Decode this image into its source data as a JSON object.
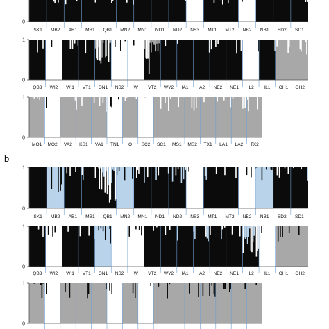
{
  "colors": {
    "black": "#0b0b0b",
    "blue": "#b9d3ea",
    "grey": "#a8a8a8",
    "white": "#ffffff",
    "axis": "#555555",
    "divider": "#6e9fd0"
  },
  "chart_data": [
    {
      "panel": "a",
      "type": "bar",
      "stacked": true,
      "ylim": [
        0,
        1
      ],
      "yticks": [
        "0",
        "1"
      ],
      "rows": [
        {
          "groups": [
            {
              "label": "SK1",
              "pattern": "black"
            },
            {
              "label": "MB2",
              "pattern": "black"
            },
            {
              "label": "AB1",
              "pattern": "black"
            },
            {
              "label": "MB1",
              "pattern": "black"
            },
            {
              "label": "QB1",
              "pattern": "black"
            },
            {
              "label": "MN2",
              "pattern": "black"
            },
            {
              "label": "MN1",
              "pattern": "black"
            },
            {
              "label": "ND1",
              "pattern": "black"
            },
            {
              "label": "ND2",
              "pattern": "black"
            },
            {
              "label": "NS3",
              "pattern": "white"
            },
            {
              "label": "MT1",
              "pattern": "black"
            },
            {
              "label": "MT2",
              "pattern": "black"
            },
            {
              "label": "NB2",
              "pattern": "white"
            },
            {
              "label": "NB1",
              "pattern": "black"
            },
            {
              "label": "SD2",
              "pattern": "black"
            },
            {
              "label": "SD1",
              "pattern": "black"
            }
          ]
        },
        {
          "groups": [
            {
              "label": "QB3",
              "pattern": "black"
            },
            {
              "label": "WI2",
              "pattern": "white"
            },
            {
              "label": "WI1",
              "pattern": "black"
            },
            {
              "label": "VT1",
              "pattern": "black"
            },
            {
              "label": "ON1",
              "pattern": "mixed"
            },
            {
              "label": "NS2",
              "pattern": "white"
            },
            {
              "label": "W",
              "pattern": "white"
            },
            {
              "label": "VT2",
              "pattern": "mixed"
            },
            {
              "label": "WY2",
              "pattern": "black"
            },
            {
              "label": "IA1",
              "pattern": "black"
            },
            {
              "label": "IA2",
              "pattern": "black"
            },
            {
              "label": "NE2",
              "pattern": "black"
            },
            {
              "label": "NE1",
              "pattern": "black"
            },
            {
              "label": "IL2",
              "pattern": "white"
            },
            {
              "label": "IL1",
              "pattern": "black"
            },
            {
              "label": "OH1",
              "pattern": "grey"
            },
            {
              "label": "OH2",
              "pattern": "grey"
            }
          ]
        },
        {
          "groups": [
            {
              "label": "MO1",
              "pattern": "grey"
            },
            {
              "label": "MO2",
              "pattern": "white"
            },
            {
              "label": "VA2",
              "pattern": "grey"
            },
            {
              "label": "KS1",
              "pattern": "grey"
            },
            {
              "label": "VA1",
              "pattern": "grey"
            },
            {
              "label": "TN1",
              "pattern": "white"
            },
            {
              "label": "O",
              "pattern": "grey"
            },
            {
              "label": "SC2",
              "pattern": "white"
            },
            {
              "label": "SC1",
              "pattern": "grey"
            },
            {
              "label": "MS1",
              "pattern": "grey"
            },
            {
              "label": "MS2",
              "pattern": "grey"
            },
            {
              "label": "TX1",
              "pattern": "grey"
            },
            {
              "label": "LA1",
              "pattern": "grey"
            },
            {
              "label": "LA2",
              "pattern": "grey"
            },
            {
              "label": "TX2",
              "pattern": "grey"
            }
          ]
        }
      ]
    },
    {
      "panel": "b",
      "type": "bar",
      "stacked": true,
      "ylim": [
        0,
        1
      ],
      "yticks": [
        "0",
        "1"
      ],
      "rows": [
        {
          "groups": [
            {
              "label": "SK1",
              "pattern": "black"
            },
            {
              "label": "MB2",
              "pattern": "blue"
            },
            {
              "label": "AB1",
              "pattern": "black"
            },
            {
              "label": "MB1",
              "pattern": "black"
            },
            {
              "label": "QB1",
              "pattern": "mixed"
            },
            {
              "label": "MN2",
              "pattern": "blue"
            },
            {
              "label": "MN1",
              "pattern": "black"
            },
            {
              "label": "ND1",
              "pattern": "black"
            },
            {
              "label": "ND2",
              "pattern": "black"
            },
            {
              "label": "NS3",
              "pattern": "white"
            },
            {
              "label": "MT1",
              "pattern": "black"
            },
            {
              "label": "MT2",
              "pattern": "black"
            },
            {
              "label": "NB2",
              "pattern": "white"
            },
            {
              "label": "NB1",
              "pattern": "blue"
            },
            {
              "label": "SD2",
              "pattern": "black"
            },
            {
              "label": "SD1",
              "pattern": "black"
            }
          ]
        },
        {
          "groups": [
            {
              "label": "QB3",
              "pattern": "black"
            },
            {
              "label": "WI2",
              "pattern": "white"
            },
            {
              "label": "WI1",
              "pattern": "black"
            },
            {
              "label": "VT1",
              "pattern": "black"
            },
            {
              "label": "ON1",
              "pattern": "blue"
            },
            {
              "label": "NS2",
              "pattern": "white"
            },
            {
              "label": "W",
              "pattern": "white"
            },
            {
              "label": "VT2",
              "pattern": "black"
            },
            {
              "label": "WY2",
              "pattern": "black"
            },
            {
              "label": "IA1",
              "pattern": "black"
            },
            {
              "label": "IA2",
              "pattern": "black"
            },
            {
              "label": "NE2",
              "pattern": "black"
            },
            {
              "label": "NE1",
              "pattern": "black"
            },
            {
              "label": "IL2",
              "pattern": "mixed"
            },
            {
              "label": "IL1",
              "pattern": "white"
            },
            {
              "label": "OH1",
              "pattern": "grey"
            },
            {
              "label": "OH2",
              "pattern": "grey"
            }
          ]
        },
        {
          "groups": [
            {
              "label": "",
              "pattern": "grey"
            },
            {
              "label": "",
              "pattern": "white"
            },
            {
              "label": "",
              "pattern": "grey"
            },
            {
              "label": "",
              "pattern": "grey"
            },
            {
              "label": "",
              "pattern": "grey"
            },
            {
              "label": "",
              "pattern": "white"
            },
            {
              "label": "",
              "pattern": "grey"
            },
            {
              "label": "",
              "pattern": "white"
            },
            {
              "label": "",
              "pattern": "grey"
            },
            {
              "label": "",
              "pattern": "grey"
            },
            {
              "label": "",
              "pattern": "grey"
            },
            {
              "label": "",
              "pattern": "grey"
            },
            {
              "label": "",
              "pattern": "grey"
            },
            {
              "label": "",
              "pattern": "grey"
            },
            {
              "label": "",
              "pattern": "grey"
            }
          ]
        }
      ]
    }
  ]
}
